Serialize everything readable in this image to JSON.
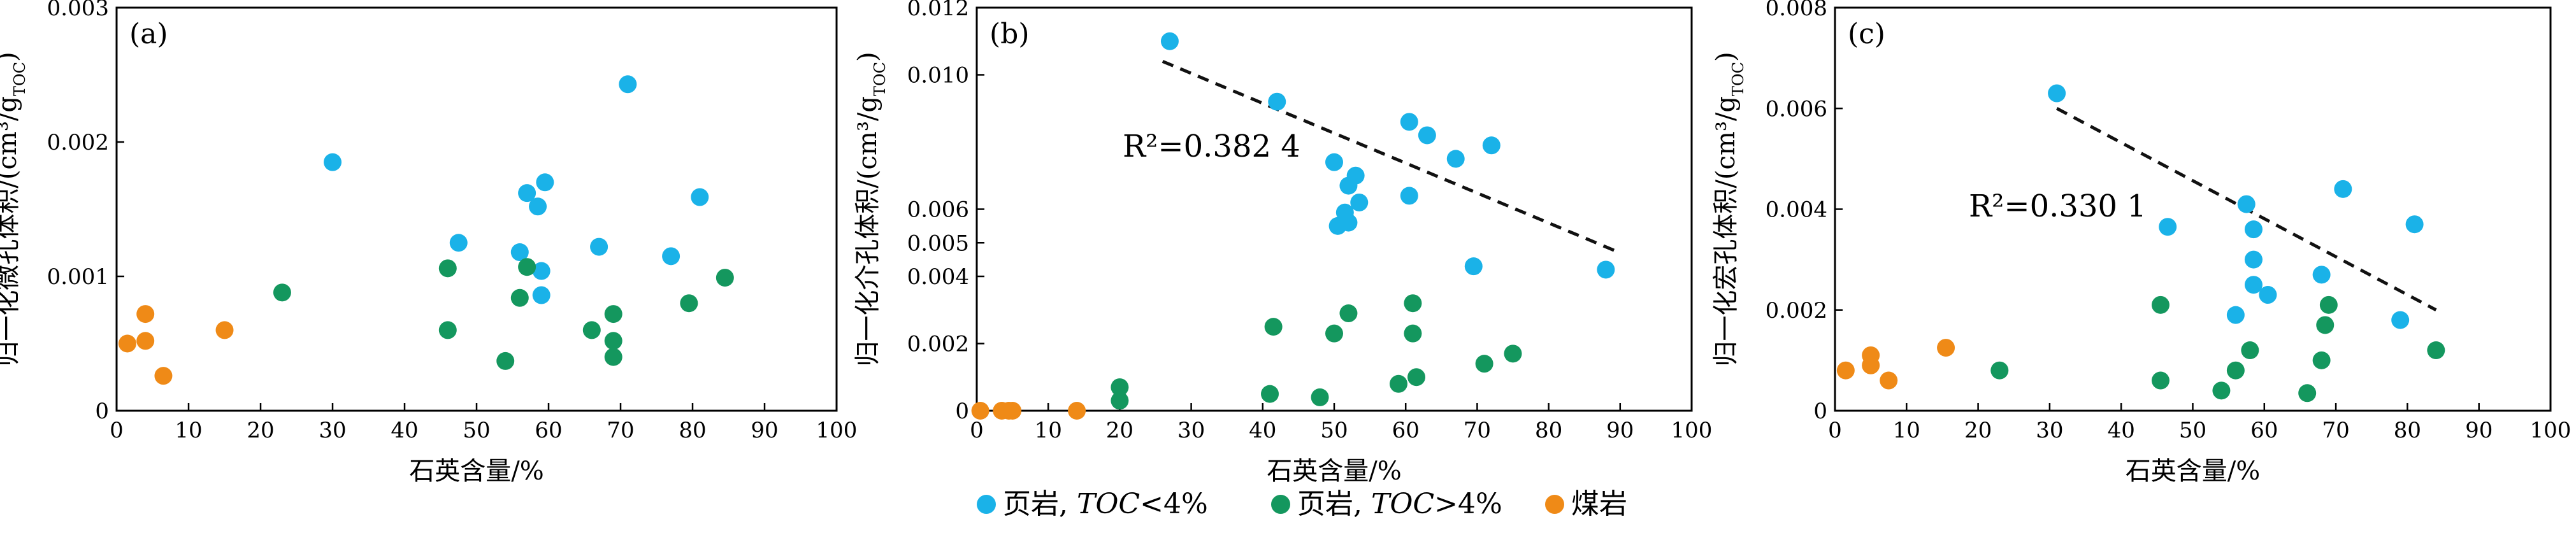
{
  "legend": {
    "items": [
      {
        "label": "页岩,",
        "italic": "TOC",
        "op": "<4%",
        "color": "#1ab2e8"
      },
      {
        "label": "页岩,",
        "italic": "TOC",
        "op": ">4%",
        "color": "#14975e"
      },
      {
        "label": "煤岩",
        "italic": "",
        "op": "",
        "color": "#ef8a17"
      }
    ]
  },
  "chart_data": [
    {
      "type": "scatter",
      "panel_label": "(a)",
      "xlabel": "石英含量/%",
      "ylabel": "归一化微孔体积/(cm³/g",
      "ylabel_sub": "TOC",
      "ylabel_close": ")",
      "xlim": [
        0,
        100
      ],
      "ylim": [
        0,
        0.003
      ],
      "xticks": [
        0,
        10,
        20,
        30,
        40,
        50,
        60,
        70,
        80,
        90,
        100
      ],
      "yticks": [
        0,
        0.001,
        0.002,
        0.003
      ],
      "ytick_labels": [
        "0",
        "0.001",
        "0.002",
        "0.003"
      ],
      "trendline": null,
      "series": [
        {
          "name": "页岩,TOC<4%",
          "color": "#1ab2e8",
          "points": [
            [
              30,
              0.00185
            ],
            [
              47.5,
              0.00125
            ],
            [
              56,
              0.00118
            ],
            [
              57,
              0.00162
            ],
            [
              58.5,
              0.00152
            ],
            [
              59,
              0.00104
            ],
            [
              59,
              0.00086
            ],
            [
              59.5,
              0.0017
            ],
            [
              67,
              0.00122
            ],
            [
              71,
              0.00243
            ],
            [
              77,
              0.00115
            ],
            [
              81,
              0.00159
            ]
          ]
        },
        {
          "name": "页岩,TOC>4%",
          "color": "#14975e",
          "points": [
            [
              23,
              0.00088
            ],
            [
              46,
              0.00106
            ],
            [
              46,
              0.0006
            ],
            [
              54,
              0.00037
            ],
            [
              56,
              0.00084
            ],
            [
              57,
              0.00107
            ],
            [
              66,
              0.0006
            ],
            [
              69,
              0.00072
            ],
            [
              69,
              0.00052
            ],
            [
              69,
              0.0004
            ],
            [
              79.5,
              0.0008
            ],
            [
              84.5,
              0.00099
            ]
          ]
        },
        {
          "name": "煤岩",
          "color": "#ef8a17",
          "points": [
            [
              1.5,
              0.0005
            ],
            [
              4,
              0.00072
            ],
            [
              4,
              0.00052
            ],
            [
              6.5,
              0.00026
            ],
            [
              15,
              0.0006
            ]
          ]
        }
      ]
    },
    {
      "type": "scatter",
      "panel_label": "(b)",
      "xlabel": "石英含量/%",
      "ylabel": "归一化介孔体积/(cm³/g",
      "ylabel_sub": "TOC",
      "ylabel_close": ")",
      "xlim": [
        0,
        100
      ],
      "ylim": [
        0,
        0.012
      ],
      "xticks": [
        0,
        10,
        20,
        30,
        40,
        50,
        60,
        70,
        80,
        90,
        100
      ],
      "yticks": [
        0,
        0.002,
        0.004,
        0.005,
        0.006,
        0.01,
        0.012
      ],
      "ytick_labels": [
        "0",
        "0.002",
        "0.004",
        "0.005",
        "0.006",
        "0.010",
        "0.012"
      ],
      "r2_label": "R²=0.382 4",
      "trendline": {
        "x": [
          26,
          90
        ],
        "y": [
          0.0104,
          0.0047
        ]
      },
      "series": [
        {
          "name": "页岩,TOC<4%",
          "color": "#1ab2e8",
          "points": [
            [
              27,
              0.011
            ],
            [
              42,
              0.0092
            ],
            [
              50,
              0.0074
            ],
            [
              50.5,
              0.0055
            ],
            [
              51.5,
              0.0059
            ],
            [
              52,
              0.0067
            ],
            [
              52,
              0.0056
            ],
            [
              53,
              0.007
            ],
            [
              53.5,
              0.0062
            ],
            [
              60.5,
              0.0086
            ],
            [
              60.5,
              0.0064
            ],
            [
              63,
              0.0082
            ],
            [
              67,
              0.0075
            ],
            [
              69.5,
              0.0043
            ],
            [
              72,
              0.0079
            ],
            [
              88,
              0.0042
            ]
          ]
        },
        {
          "name": "页岩,TOC>4%",
          "color": "#14975e",
          "points": [
            [
              20,
              0.0007
            ],
            [
              20,
              0.0003
            ],
            [
              41,
              0.0005
            ],
            [
              41.5,
              0.0025
            ],
            [
              48,
              0.0004
            ],
            [
              50,
              0.0023
            ],
            [
              52,
              0.0029
            ],
            [
              59,
              0.0008
            ],
            [
              61,
              0.0032
            ],
            [
              61,
              0.0023
            ],
            [
              61.5,
              0.001
            ],
            [
              71,
              0.0014
            ],
            [
              75,
              0.0017
            ]
          ]
        },
        {
          "name": "煤岩",
          "color": "#ef8a17",
          "points": [
            [
              0.5,
              0.0
            ],
            [
              3.5,
              0.0
            ],
            [
              4.5,
              0.0
            ],
            [
              5,
              0.0
            ],
            [
              14,
              0.0
            ]
          ]
        }
      ]
    },
    {
      "type": "scatter",
      "panel_label": "(c)",
      "xlabel": "石英含量/%",
      "ylabel": "归一化宏孔体积/(cm³/g",
      "ylabel_sub": "TOC",
      "ylabel_close": ")",
      "xlim": [
        0,
        100
      ],
      "ylim": [
        0,
        0.008
      ],
      "xticks": [
        0,
        10,
        20,
        30,
        40,
        50,
        60,
        70,
        80,
        90,
        100
      ],
      "yticks": [
        0,
        0.002,
        0.004,
        0.006,
        0.008
      ],
      "ytick_labels": [
        "0",
        "0.002",
        "0.004",
        "0.006",
        "0.008"
      ],
      "r2_label": "R²=0.330 1",
      "trendline": {
        "x": [
          31,
          84
        ],
        "y": [
          0.006,
          0.002
        ]
      },
      "series": [
        {
          "name": "页岩,TOC<4%",
          "color": "#1ab2e8",
          "points": [
            [
              31,
              0.0063
            ],
            [
              46.5,
              0.00365
            ],
            [
              56,
              0.0019
            ],
            [
              57.5,
              0.0041
            ],
            [
              58.5,
              0.003
            ],
            [
              58.5,
              0.0025
            ],
            [
              58.5,
              0.0036
            ],
            [
              60.5,
              0.0023
            ],
            [
              68,
              0.0027
            ],
            [
              71,
              0.0044
            ],
            [
              79,
              0.0018
            ],
            [
              81,
              0.0037
            ]
          ]
        },
        {
          "name": "页岩,TOC>4%",
          "color": "#14975e",
          "points": [
            [
              23,
              0.0008
            ],
            [
              45.5,
              0.0006
            ],
            [
              45.5,
              0.0021
            ],
            [
              54,
              0.0004
            ],
            [
              56,
              0.0008
            ],
            [
              58,
              0.0012
            ],
            [
              66,
              0.00035
            ],
            [
              68,
              0.001
            ],
            [
              68.5,
              0.0017
            ],
            [
              69,
              0.0021
            ],
            [
              84,
              0.0012
            ]
          ]
        },
        {
          "name": "煤岩",
          "color": "#ef8a17",
          "points": [
            [
              1.5,
              0.0008
            ],
            [
              5,
              0.0011
            ],
            [
              5,
              0.0009
            ],
            [
              7.5,
              0.0006
            ],
            [
              15.5,
              0.00125
            ]
          ]
        }
      ]
    }
  ]
}
